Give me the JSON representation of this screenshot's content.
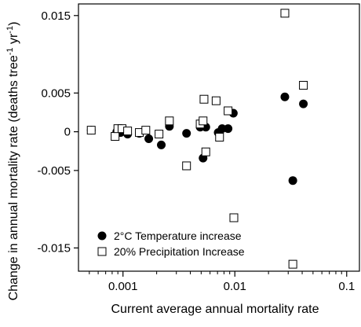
{
  "chart_data": {
    "type": "scatter",
    "title": "",
    "xlabel": "Current average annual mortality rate",
    "ylabel_parts": [
      "Change in annual mortality rate (deaths tree",
      "-1",
      " yr",
      "-1",
      ")"
    ],
    "x_scale": "log",
    "xlim": [
      0.0004,
      0.13
    ],
    "ylim": [
      -0.018,
      0.0165
    ],
    "x_ticks": [
      0.001,
      0.01,
      0.1
    ],
    "x_tick_labels": [
      "0.001",
      "0.01",
      "0.1"
    ],
    "y_ticks": [
      0.015,
      0.005,
      0,
      -0.005,
      -0.015
    ],
    "y_tick_labels": [
      "0.015",
      "0.005",
      "0",
      "-0.005",
      "-0.015"
    ],
    "grid": false,
    "legend_position": "bottom-left",
    "series": [
      {
        "name": "2°C Temperature increase",
        "marker": "filled-circle",
        "color": "#000000",
        "points": [
          [
            0.00052,
            0.0002
          ],
          [
            0.00088,
            0.0
          ],
          [
            0.00095,
            -0.0001
          ],
          [
            0.0011,
            -0.0003
          ],
          [
            0.0014,
            -0.0002
          ],
          [
            0.0017,
            -0.0009
          ],
          [
            0.0022,
            -0.0017
          ],
          [
            0.0026,
            0.0007
          ],
          [
            0.0037,
            -0.0002
          ],
          [
            0.0049,
            0.0006
          ],
          [
            0.0052,
            -0.0034
          ],
          [
            0.0055,
            0.0006
          ],
          [
            0.0071,
            -0.0001
          ],
          [
            0.0077,
            0.0004
          ],
          [
            0.0087,
            0.0004
          ],
          [
            0.0097,
            0.0024
          ],
          [
            0.028,
            0.0045
          ],
          [
            0.033,
            -0.0063
          ],
          [
            0.041,
            0.0036
          ]
        ]
      },
      {
        "name": "20% Precipitation Increase",
        "marker": "open-square",
        "color": "#000000",
        "points": [
          [
            0.00052,
            0.0002
          ],
          [
            0.00085,
            -0.0006
          ],
          [
            0.0009,
            0.0004
          ],
          [
            0.00098,
            0.0004
          ],
          [
            0.0011,
            0.0001
          ],
          [
            0.0014,
            -0.0001
          ],
          [
            0.0016,
            0.0002
          ],
          [
            0.0021,
            -0.0003
          ],
          [
            0.0026,
            0.0014
          ],
          [
            0.0037,
            -0.0044
          ],
          [
            0.0049,
            0.001
          ],
          [
            0.0052,
            0.0014
          ],
          [
            0.0053,
            0.0042
          ],
          [
            0.0055,
            -0.0026
          ],
          [
            0.0068,
            0.004
          ],
          [
            0.0073,
            -0.0007
          ],
          [
            0.0087,
            0.0027
          ],
          [
            0.0098,
            -0.0111
          ],
          [
            0.028,
            0.0153
          ],
          [
            0.033,
            -0.0171
          ],
          [
            0.041,
            0.006
          ]
        ]
      }
    ]
  }
}
